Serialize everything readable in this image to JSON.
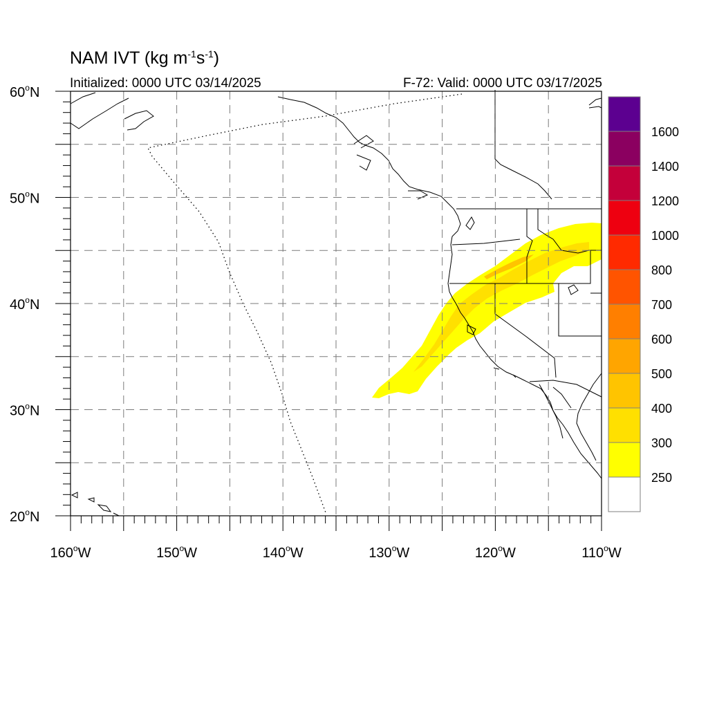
{
  "title": {
    "main": "NAM IVT (kg m",
    "exp1": "-1",
    "mid": "s",
    "exp2": "-1",
    "close": ")"
  },
  "init_text": "Initialized: 0000 UTC 03/14/2025",
  "valid_text": "F-72: Valid: 0000 UTC 03/17/2025",
  "map": {
    "lon_range": [
      -160,
      -110
    ],
    "lat_range": [
      20,
      60
    ],
    "lat_labels": [
      {
        "lat": 60,
        "num": "60",
        "hem": "N"
      },
      {
        "lat": 50,
        "num": "50",
        "hem": "N"
      },
      {
        "lat": 40,
        "num": "40",
        "hem": "N"
      },
      {
        "lat": 30,
        "num": "30",
        "hem": "N"
      },
      {
        "lat": 20,
        "num": "20",
        "hem": "N"
      }
    ],
    "lon_labels": [
      {
        "lon": -160,
        "num": "160",
        "hem": "W"
      },
      {
        "lon": -150,
        "num": "150",
        "hem": "W"
      },
      {
        "lon": -140,
        "num": "140",
        "hem": "W"
      },
      {
        "lon": -130,
        "num": "130",
        "hem": "W"
      },
      {
        "lon": -120,
        "num": "120",
        "hem": "W"
      },
      {
        "lon": -110,
        "num": "110",
        "hem": "W"
      }
    ],
    "grid_lons": [
      -155,
      -150,
      -145,
      -140,
      -135,
      -130,
      -125,
      -120,
      -115
    ],
    "grid_lats": [
      25,
      30,
      35,
      40,
      45,
      50,
      55
    ]
  },
  "colorbar": {
    "colors": [
      "#ffffff",
      "#ffff00",
      "#ffe000",
      "#ffc400",
      "#ffa500",
      "#ff7f00",
      "#ff5400",
      "#ff2a00",
      "#ee0010",
      "#c4003a",
      "#8b0060",
      "#5c0090"
    ],
    "labels": [
      "250",
      "300",
      "400",
      "500",
      "600",
      "700",
      "800",
      "1000",
      "1200",
      "1400",
      "1600"
    ]
  }
}
